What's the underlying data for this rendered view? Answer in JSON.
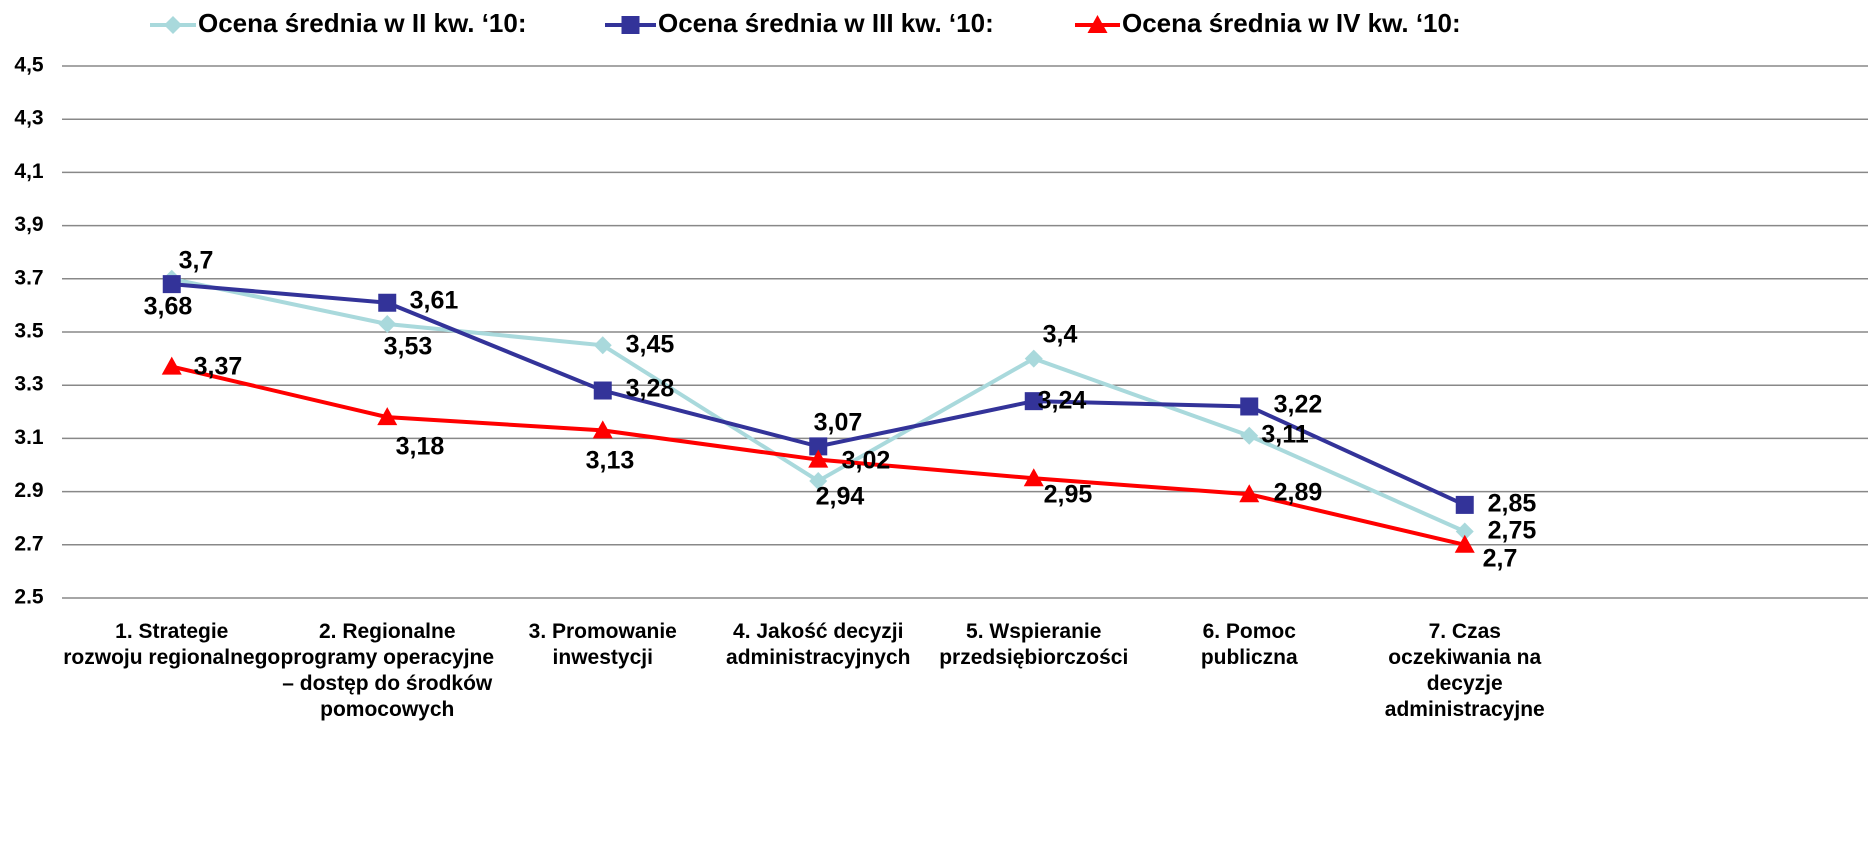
{
  "chart_data": {
    "type": "line",
    "categories": [
      "1.    Strategie\nrozwoju regionalnego",
      "2.    Regionalne\nprogramy operacyjne\n– dostęp do środków\npomocowych",
      "3.    Promowanie\ninwestycji",
      "4.    Jakość decyzji\nadministracyjnych",
      "5.    Wspieranie\nprzedsiębiorczości",
      "6.    Pomoc\npubliczna",
      "7.    Czas\noczekiwania na\ndecyzje\nadministracyjne"
    ],
    "series": [
      {
        "name": "Ocena średnia w II kw. ‘10:",
        "color": "#a9d9dc",
        "marker": "diamond",
        "values": [
          3.7,
          3.53,
          3.45,
          2.94,
          3.4,
          3.11,
          2.75
        ],
        "value_labels": [
          "3,7",
          "3,53",
          "3,45",
          "2,94",
          "3,4",
          "3,11",
          "2,75"
        ]
      },
      {
        "name": "Ocena średnia w III kw. ‘10:",
        "color": "#333399",
        "marker": "square",
        "values": [
          3.68,
          3.61,
          3.28,
          3.07,
          3.24,
          3.22,
          2.85
        ],
        "value_labels": [
          "3,68",
          "3,61",
          "3,28",
          "3,07",
          "3,24",
          "3,22",
          "2,85"
        ]
      },
      {
        "name": "Ocena średnia w IV kw. ‘10:",
        "color": "#ff0000",
        "marker": "triangle",
        "values": [
          3.37,
          3.18,
          3.13,
          3.02,
          2.95,
          2.89,
          2.7
        ],
        "value_labels": [
          "3,37",
          "3,18",
          "3,13",
          "3,02",
          "2,95",
          "2,89",
          "2,7"
        ]
      }
    ],
    "ylim": [
      2.5,
      4.5
    ],
    "yticks": [
      2.5,
      2.7,
      2.9,
      3.1,
      3.3,
      3.5,
      3.7,
      {
        "value": 3.9,
        "label": "3,9"
      },
      {
        "value": 4.1,
        "label": "4,1"
      },
      {
        "value": 4.3,
        "label": "4,3"
      },
      {
        "value": 4.5,
        "label": "4,5"
      }
    ],
    "grid": true,
    "legend": "top"
  }
}
